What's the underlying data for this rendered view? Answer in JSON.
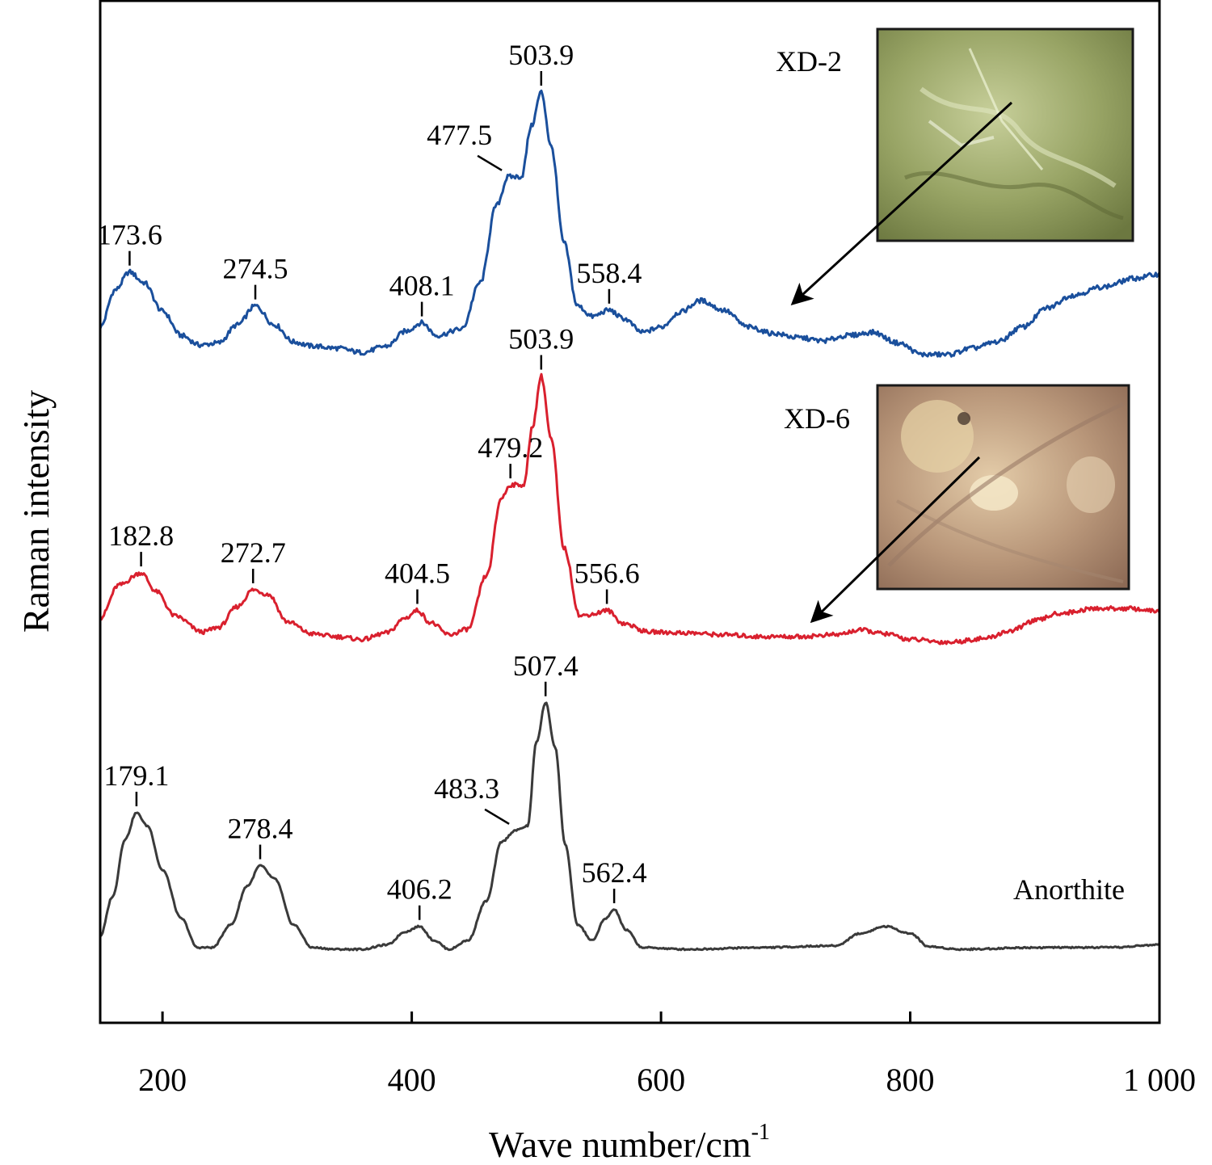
{
  "chart_data": {
    "type": "line",
    "xlabel": "Wave number/cm",
    "xlabel_sup": "-1",
    "ylabel": "Raman intensity",
    "xlim": [
      150,
      1000
    ],
    "x_ticks": [
      200,
      400,
      600,
      800,
      1000
    ],
    "x_tick_labels": [
      "200",
      "400",
      "600",
      "800",
      "1 000"
    ],
    "y_ticks_shown": false,
    "grid": false,
    "series": [
      {
        "name": "XD-2",
        "color": "#1a4f9c",
        "label_position": "right of inset image",
        "has_inset_image": true,
        "inset_tint": "#8a9a5a",
        "points": [
          [
            150,
            0.2
          ],
          [
            162,
            0.55
          ],
          [
            173.6,
            0.72
          ],
          [
            185,
            0.62
          ],
          [
            200,
            0.35
          ],
          [
            215,
            0.12
          ],
          [
            230,
            0.03
          ],
          [
            245,
            0.05
          ],
          [
            260,
            0.22
          ],
          [
            274.5,
            0.4
          ],
          [
            290,
            0.22
          ],
          [
            305,
            0.06
          ],
          [
            320,
            0.02
          ],
          [
            340,
            0.0
          ],
          [
            360,
            -0.04
          ],
          [
            380,
            0.02
          ],
          [
            395,
            0.16
          ],
          [
            408.1,
            0.24
          ],
          [
            420,
            0.12
          ],
          [
            440,
            0.18
          ],
          [
            455,
            0.62
          ],
          [
            468,
            1.35
          ],
          [
            477.5,
            1.62
          ],
          [
            488,
            1.62
          ],
          [
            496,
            2.1
          ],
          [
            503.9,
            2.42
          ],
          [
            512,
            1.9
          ],
          [
            522,
            1.0
          ],
          [
            533,
            0.4
          ],
          [
            545,
            0.3
          ],
          [
            558.4,
            0.36
          ],
          [
            570,
            0.28
          ],
          [
            585,
            0.15
          ],
          [
            600,
            0.2
          ],
          [
            615,
            0.34
          ],
          [
            632,
            0.45
          ],
          [
            650,
            0.36
          ],
          [
            670,
            0.2
          ],
          [
            690,
            0.14
          ],
          [
            710,
            0.1
          ],
          [
            730,
            0.07
          ],
          [
            750,
            0.12
          ],
          [
            770,
            0.15
          ],
          [
            790,
            0.05
          ],
          [
            810,
            -0.06
          ],
          [
            830,
            -0.06
          ],
          [
            850,
            0.0
          ],
          [
            870,
            0.06
          ],
          [
            890,
            0.2
          ],
          [
            910,
            0.38
          ],
          [
            930,
            0.5
          ],
          [
            955,
            0.58
          ],
          [
            980,
            0.66
          ],
          [
            1000,
            0.7
          ]
        ]
      },
      {
        "name": "XD-6",
        "color": "#d9202e",
        "label_position": "left of inset image",
        "has_inset_image": true,
        "inset_tint": "#b89478",
        "points": [
          [
            150,
            0.2
          ],
          [
            165,
            0.55
          ],
          [
            182.8,
            0.68
          ],
          [
            195,
            0.48
          ],
          [
            210,
            0.22
          ],
          [
            232,
            0.05
          ],
          [
            245,
            0.1
          ],
          [
            260,
            0.32
          ],
          [
            272.7,
            0.5
          ],
          [
            285,
            0.45
          ],
          [
            300,
            0.16
          ],
          [
            320,
            0.03
          ],
          [
            340,
            0.0
          ],
          [
            360,
            -0.03
          ],
          [
            380,
            0.04
          ],
          [
            395,
            0.2
          ],
          [
            404.5,
            0.28
          ],
          [
            415,
            0.15
          ],
          [
            430,
            0.02
          ],
          [
            445,
            0.08
          ],
          [
            460,
            0.65
          ],
          [
            472,
            1.48
          ],
          [
            479.2,
            1.62
          ],
          [
            490,
            1.62
          ],
          [
            497,
            2.25
          ],
          [
            503.9,
            2.78
          ],
          [
            512,
            2.1
          ],
          [
            522,
            0.95
          ],
          [
            535,
            0.22
          ],
          [
            545,
            0.24
          ],
          [
            556.6,
            0.28
          ],
          [
            570,
            0.14
          ],
          [
            590,
            0.05
          ],
          [
            620,
            0.04
          ],
          [
            650,
            0.02
          ],
          [
            680,
            0.0
          ],
          [
            710,
            0.0
          ],
          [
            740,
            0.02
          ],
          [
            760,
            0.07
          ],
          [
            780,
            0.03
          ],
          [
            800,
            -0.03
          ],
          [
            830,
            -0.06
          ],
          [
            860,
            -0.02
          ],
          [
            880,
            0.06
          ],
          [
            900,
            0.17
          ],
          [
            920,
            0.25
          ],
          [
            950,
            0.3
          ],
          [
            975,
            0.3
          ],
          [
            1000,
            0.27
          ]
        ]
      },
      {
        "name": "Anorthite",
        "color": "#3a3a3a",
        "label_position": "bottom-right",
        "has_inset_image": false,
        "points": [
          [
            150,
            0.15
          ],
          [
            160,
            0.6
          ],
          [
            170,
            1.25
          ],
          [
            179.1,
            1.55
          ],
          [
            188,
            1.4
          ],
          [
            200,
            0.9
          ],
          [
            215,
            0.35
          ],
          [
            228,
            0.02
          ],
          [
            240,
            0.02
          ],
          [
            255,
            0.28
          ],
          [
            268,
            0.72
          ],
          [
            278.4,
            0.95
          ],
          [
            290,
            0.8
          ],
          [
            305,
            0.28
          ],
          [
            320,
            0.02
          ],
          [
            340,
            0.0
          ],
          [
            360,
            0.0
          ],
          [
            380,
            0.05
          ],
          [
            395,
            0.2
          ],
          [
            406.2,
            0.26
          ],
          [
            418,
            0.1
          ],
          [
            430,
            0.0
          ],
          [
            445,
            0.1
          ],
          [
            460,
            0.55
          ],
          [
            472,
            1.22
          ],
          [
            483.3,
            1.35
          ],
          [
            493,
            1.4
          ],
          [
            500,
            2.35
          ],
          [
            507.4,
            2.8
          ],
          [
            515,
            2.3
          ],
          [
            523,
            1.2
          ],
          [
            533,
            0.28
          ],
          [
            545,
            0.1
          ],
          [
            555,
            0.34
          ],
          [
            562.4,
            0.45
          ],
          [
            572,
            0.22
          ],
          [
            585,
            0.02
          ],
          [
            620,
            0.0
          ],
          [
            680,
            0.02
          ],
          [
            740,
            0.04
          ],
          [
            760,
            0.18
          ],
          [
            780,
            0.26
          ],
          [
            800,
            0.18
          ],
          [
            815,
            0.03
          ],
          [
            840,
            0.0
          ],
          [
            900,
            0.02
          ],
          [
            960,
            0.02
          ],
          [
            1000,
            0.05
          ]
        ]
      }
    ],
    "annotations": [
      {
        "series": "XD-2",
        "x": 173.6,
        "text": "173.6"
      },
      {
        "series": "XD-2",
        "x": 274.5,
        "text": "274.5"
      },
      {
        "series": "XD-2",
        "x": 408.1,
        "text": "408.1"
      },
      {
        "series": "XD-2",
        "x": 477.5,
        "text": "477.5"
      },
      {
        "series": "XD-2",
        "x": 503.9,
        "text": "503.9"
      },
      {
        "series": "XD-2",
        "x": 558.4,
        "text": "558.4"
      },
      {
        "series": "XD-6",
        "x": 182.8,
        "text": "182.8"
      },
      {
        "series": "XD-6",
        "x": 272.7,
        "text": "272.7"
      },
      {
        "series": "XD-6",
        "x": 404.5,
        "text": "404.5"
      },
      {
        "series": "XD-6",
        "x": 479.2,
        "text": "479.2"
      },
      {
        "series": "XD-6",
        "x": 503.9,
        "text": "503.9"
      },
      {
        "series": "XD-6",
        "x": 556.6,
        "text": "556.6"
      },
      {
        "series": "Anorthite",
        "x": 179.1,
        "text": "179.1"
      },
      {
        "series": "Anorthite",
        "x": 278.4,
        "text": "278.4"
      },
      {
        "series": "Anorthite",
        "x": 406.2,
        "text": "406.2"
      },
      {
        "series": "Anorthite",
        "x": 483.3,
        "text": "483.3"
      },
      {
        "series": "Anorthite",
        "x": 507.4,
        "text": "507.4"
      },
      {
        "series": "Anorthite",
        "x": 562.4,
        "text": "562.4"
      }
    ]
  }
}
